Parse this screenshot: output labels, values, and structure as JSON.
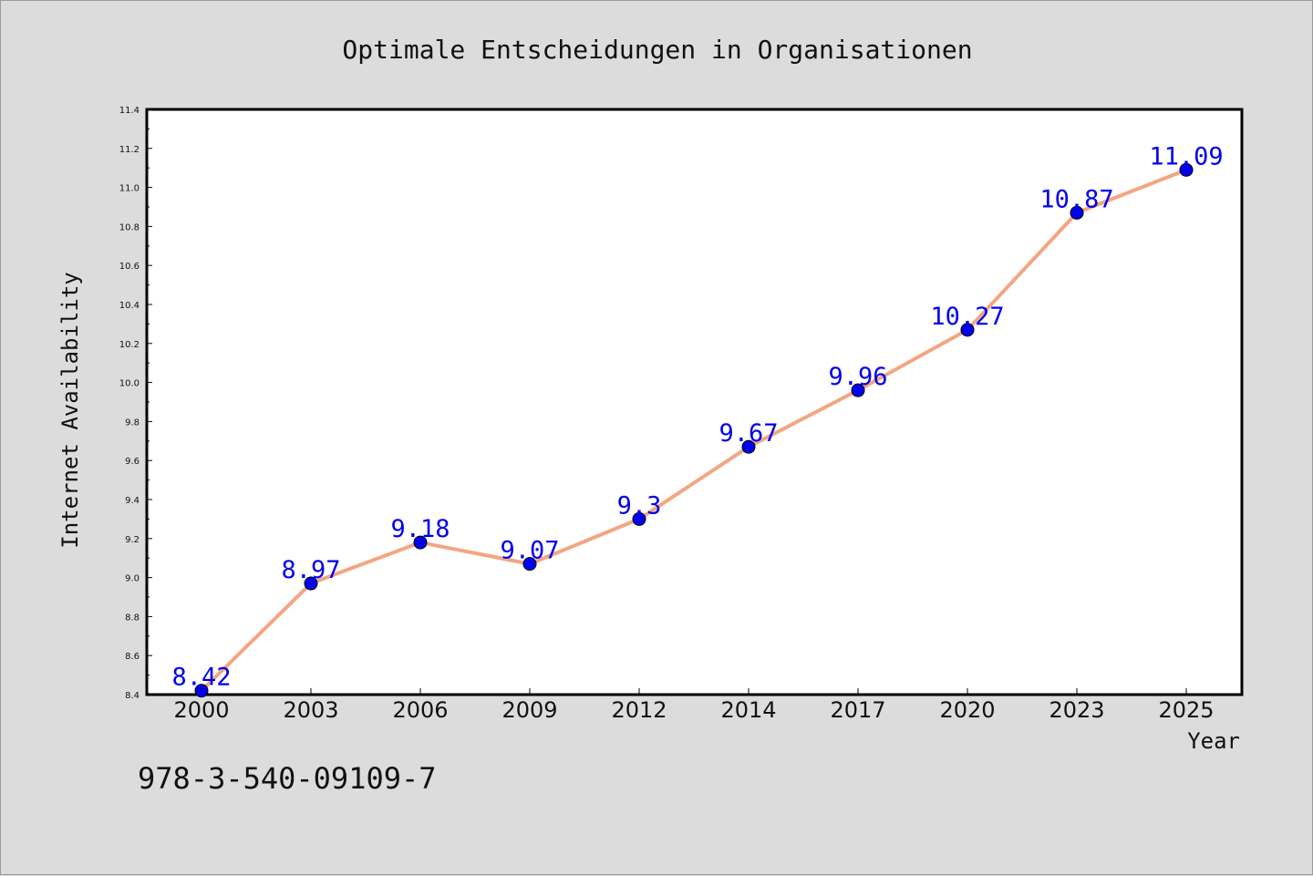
{
  "chart_data": {
    "type": "line",
    "title": "Optimale Entscheidungen in Organisationen",
    "xlabel": "Year",
    "ylabel": "Internet Availability",
    "categories": [
      "2000",
      "2003",
      "2006",
      "2009",
      "2012",
      "2014",
      "2017",
      "2020",
      "2023",
      "2025"
    ],
    "series": [
      {
        "values": [
          8.42,
          8.97,
          9.18,
          9.07,
          9.3,
          9.67,
          9.96,
          10.27,
          10.87,
          11.09
        ],
        "labels": [
          "8.42",
          "8.97",
          "9.18",
          "9.07",
          "9.3",
          "9.67",
          "9.96",
          "10.27",
          "10.87",
          "11.09"
        ],
        "line_color": "#f4a582",
        "marker_color": "#0000ee",
        "label_color": "#0000ee"
      }
    ],
    "ylim": [
      8.4,
      11.4
    ],
    "yticks": [
      "8.4",
      "8.6",
      "8.8",
      "9.0",
      "9.2",
      "9.4",
      "9.6",
      "9.8",
      "10.0",
      "10.2",
      "10.4",
      "10.6",
      "10.8",
      "11.0",
      "11.2",
      "11.4"
    ],
    "grid": false,
    "legend": "none",
    "background_color": "#dcdcdc",
    "plot_background": "#ffffff"
  },
  "footer": {
    "isbn": "978-3-540-09109-7"
  }
}
